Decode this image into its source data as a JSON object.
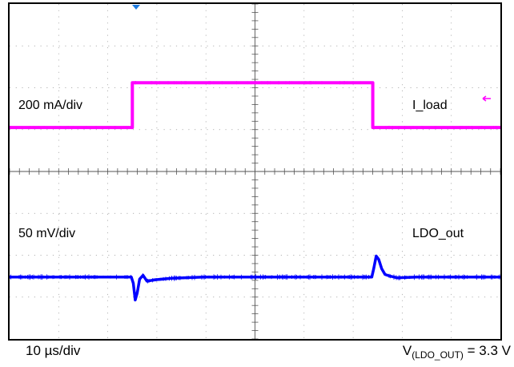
{
  "chart_data": {
    "type": "line",
    "title": "",
    "grid": true,
    "divisions": {
      "x": 10,
      "y": 8
    },
    "timebase_label": "10 µs/div",
    "output_label_main": "V",
    "output_label_sub": "(LDO_OUT)",
    "output_label_value": " = 3.3 V",
    "series": [
      {
        "name": "I_load",
        "scale_label": "200 mA/div",
        "color": "#ff00ff",
        "baseline_div": 5.05,
        "x": [
          0,
          2.5,
          2.5,
          7.4,
          7.4,
          10
        ],
        "y": [
          0,
          0,
          1.07,
          1.07,
          0,
          0
        ]
      },
      {
        "name": "LDO_out",
        "scale_label": "50 mV/div",
        "color": "#0000ff",
        "baseline_div": 1.48,
        "x": [
          0,
          2.48,
          2.52,
          2.56,
          2.6,
          2.65,
          2.72,
          2.8,
          2.95,
          3.3,
          4,
          7.38,
          7.42,
          7.47,
          7.52,
          7.58,
          7.65,
          7.75,
          7.9,
          8.3,
          10
        ],
        "y": [
          0,
          0,
          -0.15,
          -0.55,
          -0.38,
          -0.05,
          0.04,
          -0.1,
          -0.07,
          -0.03,
          0,
          0,
          0.2,
          0.5,
          0.42,
          0.2,
          0.06,
          0.02,
          -0.02,
          0,
          0
        ]
      }
    ]
  }
}
